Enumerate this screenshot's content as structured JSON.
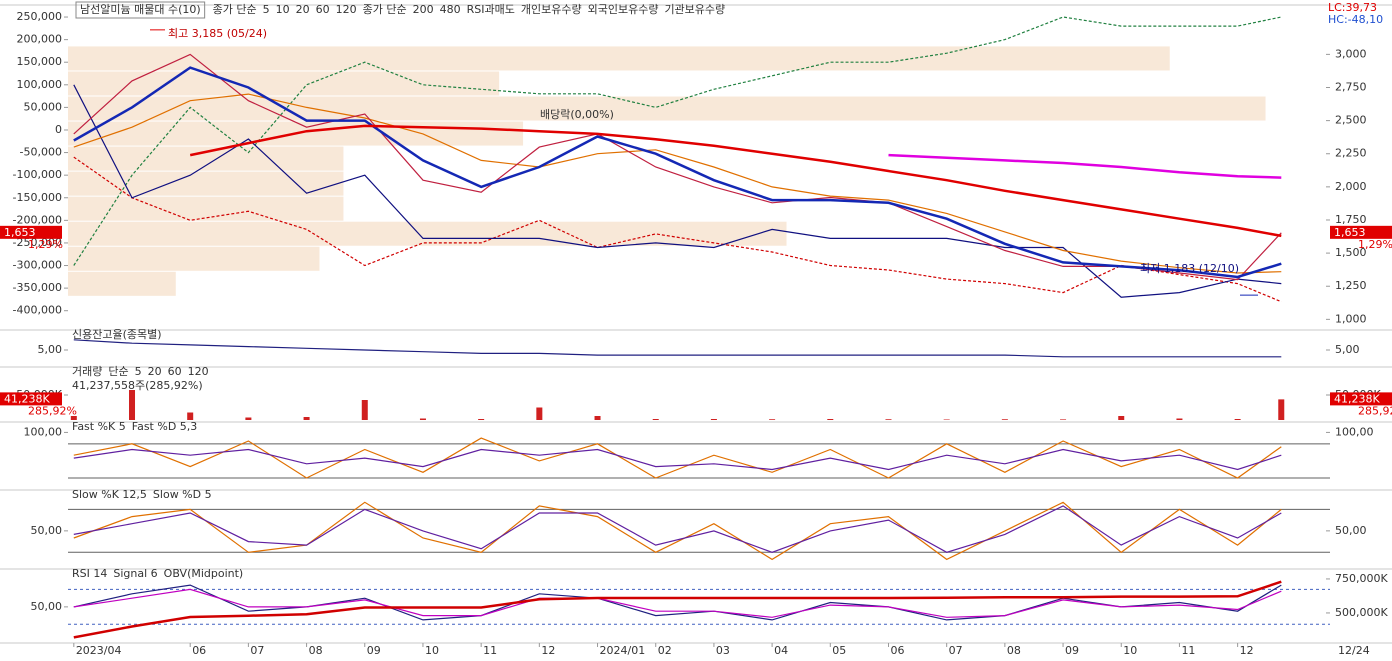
{
  "chart_data": [
    {
      "type": "line",
      "title": "남선알미늄 매물대 수(10)",
      "corner_labels": [
        {
          "text": "LC:39,73",
          "color": "#e00000"
        },
        {
          "text": "HC:-48,10",
          "color": "#2050d0"
        }
      ],
      "legend": [
        {
          "text": "종가 단순",
          "color": "#c0007a"
        },
        {
          "text": "5",
          "color": "#c000c0"
        },
        {
          "text": "10",
          "color": "#00a000"
        },
        {
          "text": "20",
          "color": "#1428b4"
        },
        {
          "text": "60",
          "color": "#e07000"
        },
        {
          "text": "120",
          "color": "#008080"
        },
        {
          "text": "종가 단순",
          "color": "#c0007a"
        },
        {
          "text": "200",
          "color": "#e00000"
        },
        {
          "text": "480",
          "color": "#e000e0"
        },
        {
          "text": "RSI과매도",
          "color": "#ff80c0"
        },
        {
          "text": "개인보유수량",
          "color": "#208040"
        },
        {
          "text": "외국인보유수량",
          "color": "#d00000"
        },
        {
          "text": "기관보유수량",
          "color": "#101080"
        }
      ],
      "x": [
        0,
        1,
        2,
        3,
        4,
        5,
        6,
        7,
        8,
        9,
        10,
        11,
        12,
        13,
        14,
        15,
        16,
        17,
        18,
        19,
        20,
        20.75
      ],
      "xlim": [
        -0.1,
        20.9
      ],
      "xticks": [
        {
          "value": 0,
          "label": "2023/04"
        },
        {
          "value": 2,
          "label": "06"
        },
        {
          "value": 3,
          "label": "07"
        },
        {
          "value": 4,
          "label": "08"
        },
        {
          "value": 5,
          "label": "09"
        },
        {
          "value": 6,
          "label": "10"
        },
        {
          "value": 7,
          "label": "11"
        },
        {
          "value": 8,
          "label": "12"
        },
        {
          "value": 9,
          "label": "2024/01"
        },
        {
          "value": 10,
          "label": "02"
        },
        {
          "value": 11,
          "label": "03"
        },
        {
          "value": 12,
          "label": "04"
        },
        {
          "value": 13,
          "label": "05"
        },
        {
          "value": 14,
          "label": "06"
        },
        {
          "value": 15,
          "label": "07"
        },
        {
          "value": 16,
          "label": "08"
        },
        {
          "value": 17,
          "label": "09"
        },
        {
          "value": 18,
          "label": "10"
        },
        {
          "value": 19,
          "label": "11"
        },
        {
          "value": 20,
          "label": "12"
        }
      ],
      "date_label": "12/24",
      "ylim": [
        -425000,
        270000
      ],
      "yticks": [
        {
          "value": 250000,
          "label": "250,000"
        },
        {
          "value": 200000,
          "label": "200,000"
        },
        {
          "value": 150000,
          "label": "150,000"
        },
        {
          "value": 100000,
          "label": "100,000"
        },
        {
          "value": 50000,
          "label": "50,000"
        },
        0,
        {
          "value": -50000,
          "label": "-50,000"
        },
        {
          "value": -100000,
          "label": "-100,000"
        },
        {
          "value": -150000,
          "label": "-150,000"
        },
        {
          "value": -200000,
          "label": "-200,000"
        },
        {
          "value": -250000,
          "label": "-250,000"
        },
        {
          "value": -300000,
          "label": "-300,000"
        },
        {
          "value": -350000,
          "label": "-350,000"
        },
        {
          "value": -400000,
          "label": "-400,000"
        }
      ],
      "y2lim": [
        980,
        3350
      ],
      "y2ticks": [
        {
          "value": 1000,
          "label": "1,000"
        },
        {
          "value": 1250,
          "label": "1,250"
        },
        {
          "value": 1500,
          "label": "1,500"
        },
        {
          "value": 1750,
          "label": "1,750"
        },
        {
          "value": 2000,
          "label": "2,000"
        },
        {
          "value": 2250,
          "label": "2,250"
        },
        {
          "value": 2500,
          "label": "2,500"
        },
        {
          "value": 2750,
          "label": "2,750"
        },
        {
          "value": 3000,
          "label": "3,000"
        }
      ],
      "volume_profile": {
        "bins": [
          1170,
          1359,
          1548,
          1737,
          1926,
          2115,
          2304,
          2493,
          2682,
          2871,
          3060
        ],
        "values": [
          9,
          21,
          60,
          23,
          23,
          23,
          38,
          100,
          36,
          92
        ],
        "color": "#f8e8d8"
      },
      "series": [
        {
          "color": "#208040",
          "dashed": true,
          "values": [
            -300000,
            -100000,
            50000,
            -50000,
            100000,
            150000,
            100000,
            90000,
            80000,
            80000,
            50000,
            90000,
            120000,
            150000,
            150000,
            170000,
            200000,
            250000,
            230000,
            230000,
            230000,
            250000
          ]
        },
        {
          "color": "#d00000",
          "dashed": true,
          "values": [
            -60000,
            -150000,
            -200000,
            -180000,
            -220000,
            -300000,
            -250000,
            -250000,
            -200000,
            -260000,
            -230000,
            -250000,
            -270000,
            -300000,
            -310000,
            -330000,
            -340000,
            -360000,
            -300000,
            -320000,
            -340000,
            -380000
          ]
        },
        {
          "color": "#101080",
          "values": [
            100000,
            -150000,
            -100000,
            -20000,
            -140000,
            -100000,
            -240000,
            -240000,
            -240000,
            -260000,
            -250000,
            -260000,
            -220000,
            -240000,
            -240000,
            -240000,
            -260000,
            -260000,
            -370000,
            -360000,
            -330000,
            -340000
          ]
        },
        {
          "axis": "y2",
          "color": "#e07000",
          "values": [
            2300,
            2450,
            2650,
            2700,
            2600,
            2520,
            2400,
            2200,
            2150,
            2250,
            2280,
            2150,
            2000,
            1930,
            1900,
            1800,
            1660,
            1520,
            1440,
            1390,
            1350,
            1360
          ]
        },
        {
          "axis": "y2",
          "color": "#c02040",
          "values": [
            2400,
            2800,
            3000,
            2650,
            2450,
            2550,
            2050,
            1960,
            2300,
            2400,
            2150,
            2000,
            1880,
            1920,
            1880,
            1700,
            1520,
            1400,
            1400,
            1350,
            1300,
            1653
          ]
        },
        {
          "axis": "y2",
          "color": "#1428b4",
          "thick": true,
          "values": [
            2350,
            2600,
            2900,
            2750,
            2500,
            2500,
            2200,
            2000,
            2150,
            2380,
            2250,
            2050,
            1900,
            1900,
            1880,
            1760,
            1570,
            1430,
            1400,
            1370,
            1320,
            1420
          ]
        },
        {
          "axis": "y2",
          "color": "#e00000",
          "thick": true,
          "values": [
            null,
            null,
            2240,
            2330,
            2420,
            2460,
            2450,
            2440,
            2420,
            2400,
            2360,
            2310,
            2250,
            2190,
            2120,
            2050,
            1970,
            1900,
            1830,
            1760,
            1690,
            1630
          ]
        },
        {
          "axis": "y2",
          "color": "#e000e0",
          "thick": true,
          "values": [
            null,
            null,
            null,
            null,
            null,
            null,
            null,
            null,
            null,
            null,
            null,
            null,
            null,
            null,
            2240,
            2220,
            2200,
            2180,
            2150,
            2110,
            2080,
            2070
          ]
        }
      ],
      "high": {
        "label": "최고 3,185 (05/24)",
        "value": 3185
      },
      "low": {
        "label": "최저 1,183 (12/10)",
        "value": 1183
      },
      "event_label": "배당락(0,00%)",
      "current": {
        "value": 1653,
        "label": "1,653",
        "change": "1,29%"
      }
    },
    {
      "type": "line",
      "legend": [
        {
          "text": "신용잔고율(종목별)",
          "color": "#202020"
        }
      ],
      "ylim": [
        4.5,
        5.5
      ],
      "yticks": [
        {
          "value": 5,
          "label": "5,00"
        }
      ],
      "y2ticks": [
        {
          "value": 5,
          "label": "5,00"
        }
      ],
      "series": [
        {
          "color": "#202080",
          "values": [
            5.3,
            5.2,
            5.15,
            5.1,
            5.05,
            5.0,
            4.95,
            4.9,
            4.9,
            4.85,
            4.85,
            4.85,
            4.85,
            4.85,
            4.85,
            4.85,
            4.85,
            4.8,
            4.8,
            4.8,
            4.8,
            4.8
          ]
        }
      ]
    },
    {
      "type": "bar",
      "legend": [
        {
          "text": "거래량",
          "color": "#008080"
        },
        {
          "text": "단순",
          "color": "#c000c0"
        },
        {
          "text": "5",
          "color": "#c000c0"
        },
        {
          "text": "20",
          "color": "#c0c000"
        },
        {
          "text": "60",
          "color": "#00a000"
        },
        {
          "text": "120",
          "color": "#808080"
        }
      ],
      "info": "41,237,558주(285,92%)",
      "ylim": [
        0,
        100000
      ],
      "yticks": [
        {
          "value": 50000,
          "label": "50,000K"
        }
      ],
      "y2ticks": [
        {
          "value": 50000,
          "label": "50,000K"
        }
      ],
      "color": "#d02020",
      "values": [
        8000,
        60000,
        15000,
        5000,
        6000,
        40000,
        3000,
        2000,
        25000,
        8000,
        2000,
        2000,
        1500,
        2000,
        1500,
        1000,
        1500,
        1200,
        8000,
        3000,
        2000,
        41238
      ],
      "current": {
        "value": 41238,
        "label": "41,238K",
        "change": "285,92%"
      }
    },
    {
      "type": "line",
      "legend": [
        {
          "text": "Fast %K 5",
          "color": "#c04000"
        },
        {
          "text": "Fast %D 5,3",
          "color": "#c000c0"
        }
      ],
      "ylim": [
        -1,
        113
      ],
      "yticks": [
        {
          "value": 100,
          "label": "100,00"
        }
      ],
      "y2ticks": [
        {
          "value": 100,
          "label": "100,00"
        }
      ],
      "ref_lines": [
        80,
        20
      ],
      "series": [
        {
          "color": "#e07000",
          "values": [
            60,
            80,
            40,
            85,
            20,
            70,
            30,
            90,
            50,
            80,
            20,
            60,
            30,
            70,
            20,
            80,
            30,
            85,
            40,
            70,
            20,
            75
          ]
        },
        {
          "color": "#6020a0",
          "values": [
            55,
            70,
            60,
            70,
            45,
            55,
            40,
            70,
            60,
            70,
            40,
            45,
            35,
            55,
            35,
            60,
            45,
            70,
            50,
            60,
            35,
            60
          ]
        }
      ]
    },
    {
      "type": "line",
      "legend": [
        {
          "text": "Slow %K 12,5",
          "color": "#c04000"
        },
        {
          "text": "Slow %D 5",
          "color": "#c000c0"
        }
      ],
      "ylim": [
        -2,
        103
      ],
      "yticks": [
        {
          "value": 50,
          "label": "50,00"
        }
      ],
      "y2ticks": [
        {
          "value": 50,
          "label": "50,00"
        }
      ],
      "ref_lines": [
        80,
        20
      ],
      "series": [
        {
          "color": "#e07000",
          "values": [
            40,
            70,
            80,
            20,
            30,
            90,
            40,
            20,
            85,
            70,
            20,
            60,
            10,
            60,
            70,
            10,
            50,
            90,
            20,
            80,
            30,
            80
          ]
        },
        {
          "color": "#6020a0",
          "values": [
            45,
            60,
            75,
            35,
            30,
            80,
            50,
            25,
            75,
            75,
            30,
            50,
            20,
            50,
            65,
            20,
            45,
            85,
            30,
            70,
            40,
            75
          ]
        }
      ]
    },
    {
      "type": "line",
      "legend": [
        {
          "text": "RSI 14",
          "color": "#202080"
        },
        {
          "text": "Signal 6",
          "color": "#c000c0"
        },
        {
          "text": "OBV(Midpoint)",
          "color": "#c00000"
        }
      ],
      "ylim": [
        12,
        90
      ],
      "yticks": [
        {
          "value": 50,
          "label": "50,00"
        }
      ],
      "y2lim": [
        301000,
        801000
      ],
      "y2ticks": [
        {
          "value": 750000,
          "label": "750,000K"
        },
        {
          "value": 500000,
          "label": "500,000K"
        }
      ],
      "ref_lines": [
        70,
        30
      ],
      "series": [
        {
          "color": "#202080",
          "values": [
            50,
            65,
            75,
            45,
            50,
            60,
            35,
            40,
            65,
            60,
            40,
            45,
            35,
            55,
            50,
            35,
            40,
            60,
            50,
            55,
            45,
            75
          ]
        },
        {
          "color": "#c000c0",
          "values": [
            50,
            60,
            70,
            50,
            50,
            58,
            40,
            40,
            60,
            60,
            45,
            45,
            38,
            52,
            50,
            38,
            40,
            58,
            50,
            52,
            47,
            68
          ]
        },
        {
          "axis": "y2",
          "color": "#d00000",
          "thick": true,
          "values": [
            320000,
            400000,
            470000,
            480000,
            490000,
            540000,
            540000,
            540000,
            600000,
            610000,
            610000,
            610000,
            610000,
            610000,
            610000,
            612000,
            615000,
            615000,
            620000,
            620000,
            622000,
            730000
          ]
        }
      ]
    }
  ]
}
